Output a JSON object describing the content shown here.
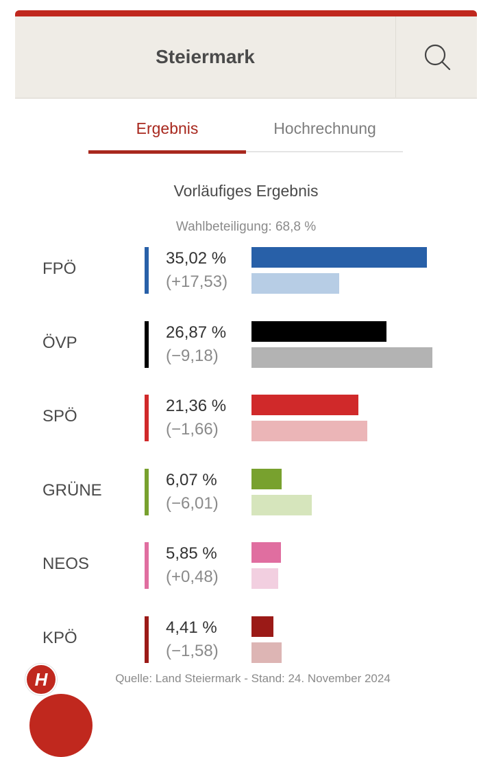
{
  "header": {
    "title": "Steiermark"
  },
  "tabs": [
    {
      "label": "Ergebnis",
      "active": true
    },
    {
      "label": "Hochrechnung",
      "active": false
    }
  ],
  "chart_data": {
    "type": "bar",
    "title": "Vorläufiges Ergebnis",
    "subtitle": "Wahlbeteiligung: 68,8 %",
    "categories": [
      "FPÖ",
      "ÖVP",
      "SPÖ",
      "GRÜNE",
      "NEOS",
      "KPÖ"
    ],
    "series": [
      {
        "values": [
          35.02,
          26.87,
          21.36,
          6.07,
          5.85,
          4.41
        ]
      },
      {
        "values": [
          17.49,
          36.05,
          23.02,
          12.08,
          5.37,
          5.99
        ]
      }
    ],
    "percent_labels": [
      "35,02 %",
      "26,87 %",
      "21,36 %",
      "6,07 %",
      "5,85 %",
      "4,41 %"
    ],
    "change_labels": [
      "(+17,53)",
      "(−9,18)",
      "(−1,66)",
      "(−6,01)",
      "(+0,48)",
      "(−1,58)"
    ],
    "colors": [
      "#2860a8",
      "#000000",
      "#d0292a",
      "#78a12e",
      "#e06ea0",
      "#9b1a17"
    ],
    "light_colors": [
      "#b7cde5",
      "#b3b3b3",
      "#ebb5b7",
      "#d6e5bc",
      "#f2cfe0",
      "#ddb5b4"
    ],
    "xlim": [
      0,
      36.05
    ]
  },
  "source": "Quelle: Land Steiermark - Stand: 24. November 2024",
  "logo_letter": "H"
}
